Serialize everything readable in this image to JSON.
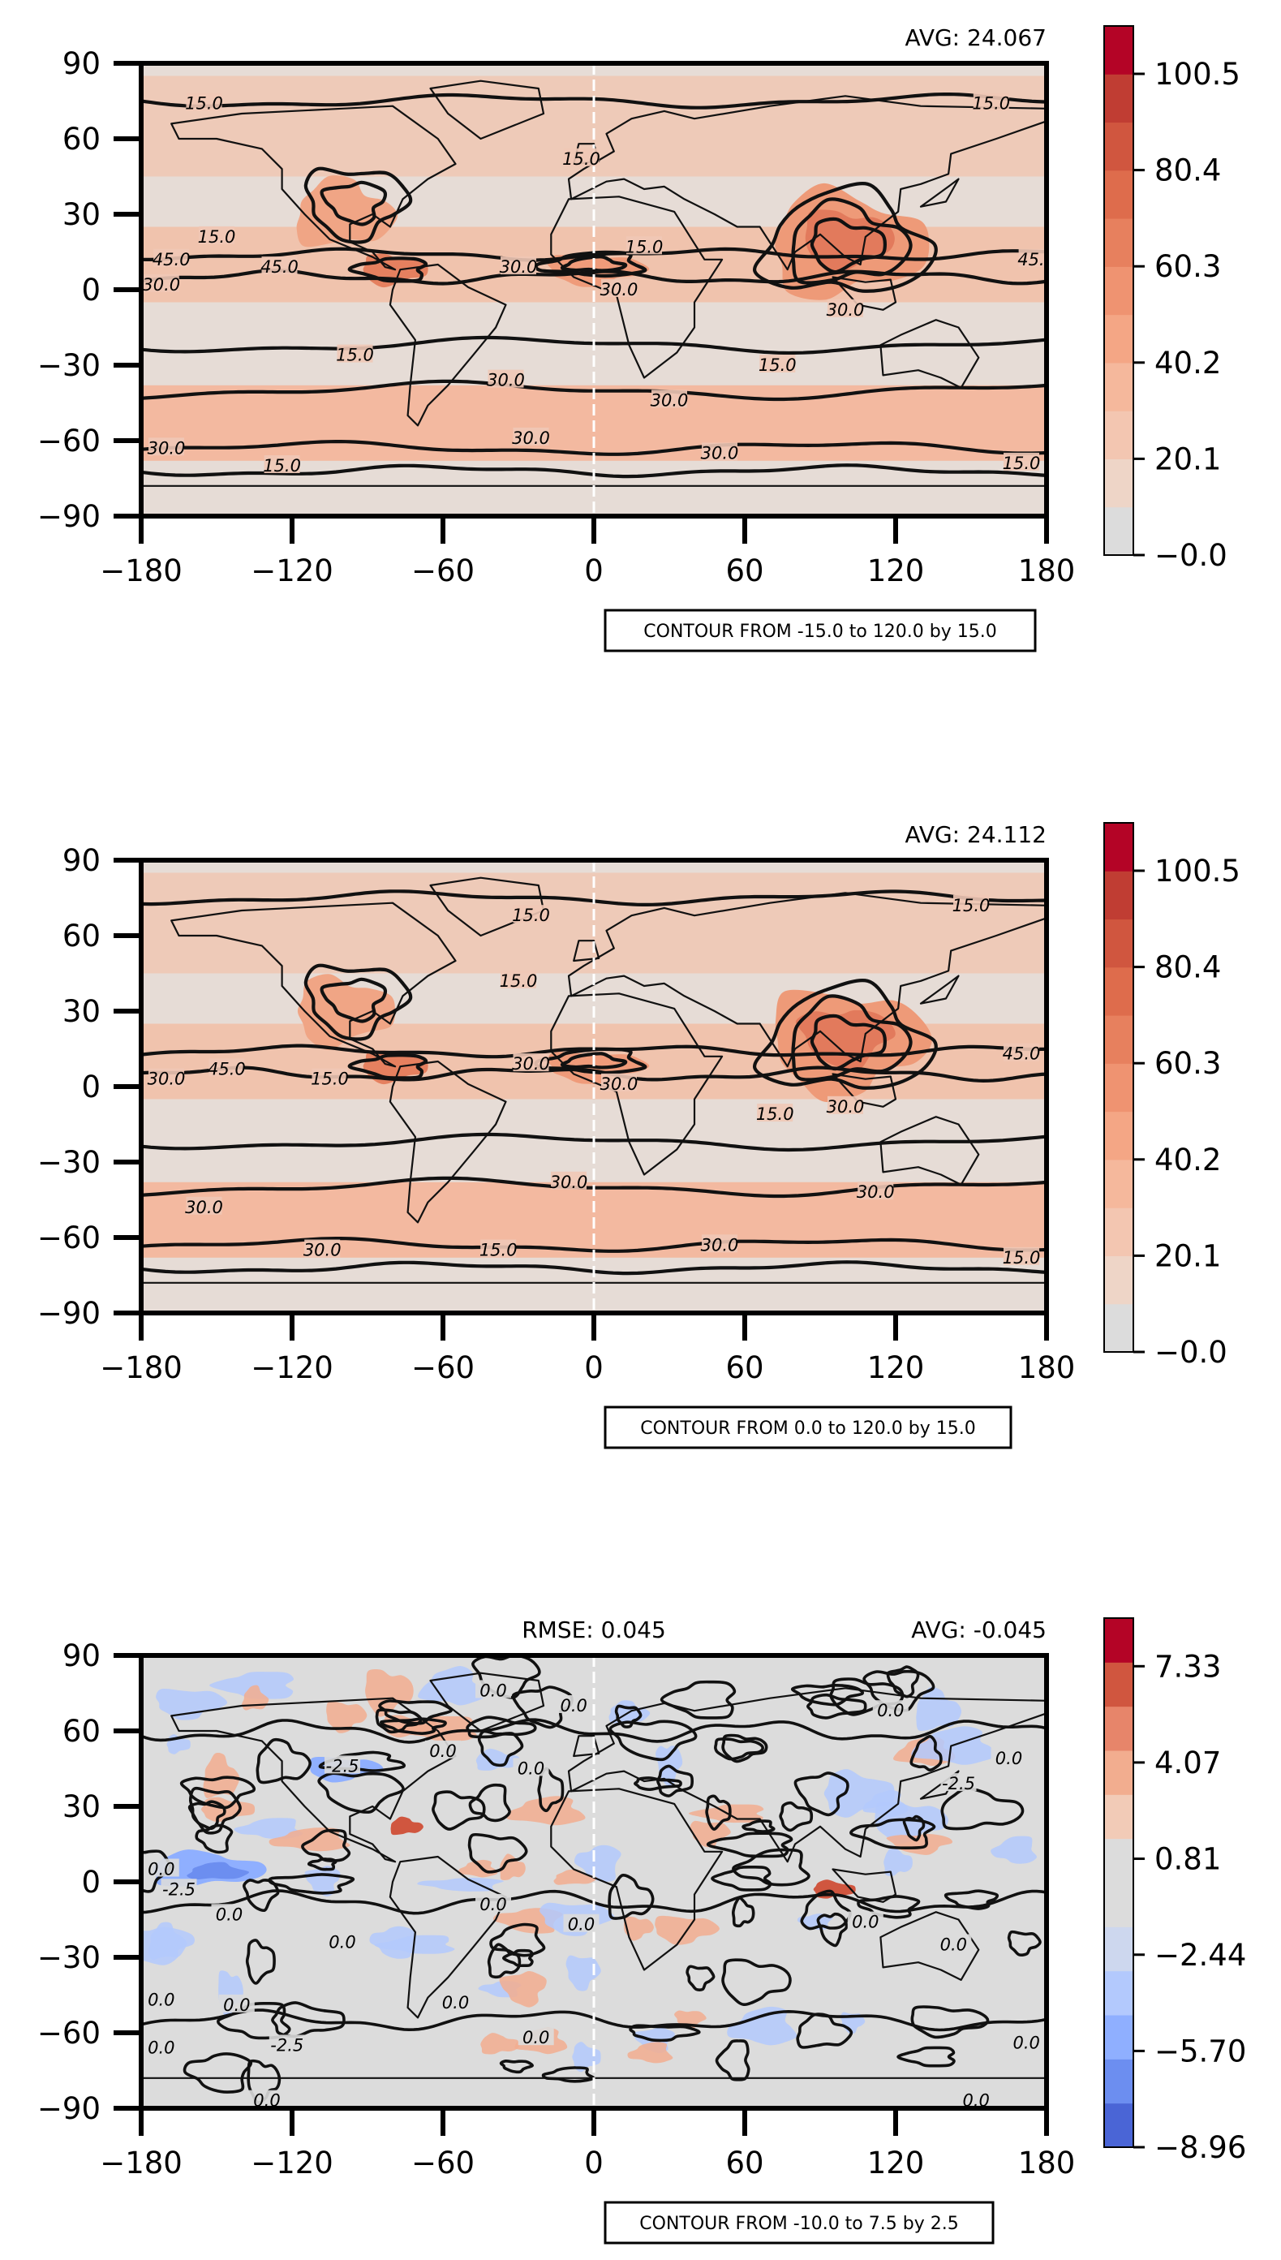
{
  "chart_data": [
    {
      "type": "heatmap",
      "title": "",
      "avg_label": "AVG: 24.067",
      "rmse_label": "",
      "contour_text": "CONTOUR FROM -15.0 to 120.0 by 15.0",
      "x_ticks": [
        -180,
        -120,
        -60,
        0,
        60,
        120,
        180
      ],
      "y_ticks": [
        -90,
        -60,
        -30,
        0,
        30,
        60,
        90
      ],
      "x_tick_labels": [
        "−180",
        "−120",
        "−60",
        "0",
        "60",
        "120",
        "180"
      ],
      "y_tick_labels": [
        "−90",
        "−60",
        "−30",
        "0",
        "30",
        "60",
        "90"
      ],
      "xlim": [
        -180,
        180
      ],
      "ylim": [
        -90,
        90
      ],
      "colorbar": {
        "ticks": [
          0.0,
          20.1,
          40.2,
          60.3,
          80.4,
          100.5
        ],
        "tick_labels": [
          "−0.0",
          "20.1",
          "40.2",
          "60.3",
          "80.4",
          "100.5"
        ],
        "range": [
          0,
          110.5
        ],
        "colors": [
          "#dcdcdc",
          "#eed5c7",
          "#f3c6b1",
          "#f5b89c",
          "#f4a685",
          "#ef9371",
          "#e7805e",
          "#de6c4c",
          "#d0563f",
          "#c03d33",
          "#b40426"
        ]
      },
      "contour_labels": [
        {
          "text": "15.0",
          "lon": -155,
          "lat": 74
        },
        {
          "text": "15.0",
          "lon": -5,
          "lat": 52
        },
        {
          "text": "15.0",
          "lon": 158,
          "lat": 74
        },
        {
          "text": "15.0",
          "lon": -150,
          "lat": 21
        },
        {
          "text": "45.0",
          "lon": -168,
          "lat": 12
        },
        {
          "text": "45.0",
          "lon": -125,
          "lat": 9
        },
        {
          "text": "30.0",
          "lon": -172,
          "lat": 2
        },
        {
          "text": "30.0",
          "lon": -30,
          "lat": 9
        },
        {
          "text": "15.0",
          "lon": 20,
          "lat": 17
        },
        {
          "text": "30.0",
          "lon": 10,
          "lat": 0
        },
        {
          "text": "45.0",
          "lon": 176,
          "lat": 12
        },
        {
          "text": "30.0",
          "lon": 100,
          "lat": -8
        },
        {
          "text": "15.0",
          "lon": -95,
          "lat": -26
        },
        {
          "text": "30.0",
          "lon": -35,
          "lat": -36
        },
        {
          "text": "30.0",
          "lon": 30,
          "lat": -44
        },
        {
          "text": "15.0",
          "lon": 73,
          "lat": -30
        },
        {
          "text": "30.0",
          "lon": -170,
          "lat": -63
        },
        {
          "text": "15.0",
          "lon": -124,
          "lat": -70
        },
        {
          "text": "30.0",
          "lon": -25,
          "lat": -59
        },
        {
          "text": "30.0",
          "lon": 50,
          "lat": -65
        },
        {
          "text": "15.0",
          "lon": 170,
          "lat": -69
        }
      ]
    },
    {
      "type": "heatmap",
      "title": "",
      "avg_label": "AVG: 24.112",
      "rmse_label": "",
      "contour_text": "CONTOUR FROM 0.0 to 120.0 by 15.0",
      "x_ticks": [
        -180,
        -120,
        -60,
        0,
        60,
        120,
        180
      ],
      "y_ticks": [
        -90,
        -60,
        -30,
        0,
        30,
        60,
        90
      ],
      "x_tick_labels": [
        "−180",
        "−120",
        "−60",
        "0",
        "60",
        "120",
        "180"
      ],
      "y_tick_labels": [
        "−90",
        "−60",
        "−30",
        "0",
        "30",
        "60",
        "90"
      ],
      "xlim": [
        -180,
        180
      ],
      "ylim": [
        -90,
        90
      ],
      "colorbar": {
        "ticks": [
          0.0,
          20.1,
          40.2,
          60.3,
          80.4,
          100.5
        ],
        "tick_labels": [
          "−0.0",
          "20.1",
          "40.2",
          "60.3",
          "80.4",
          "100.5"
        ],
        "range": [
          0,
          110.5
        ],
        "colors": [
          "#dcdcdc",
          "#eed5c7",
          "#f3c6b1",
          "#f5b89c",
          "#f4a685",
          "#ef9371",
          "#e7805e",
          "#de6c4c",
          "#d0563f",
          "#c03d33",
          "#b40426"
        ]
      },
      "contour_labels": [
        {
          "text": "15.0",
          "lon": -25,
          "lat": 68
        },
        {
          "text": "15.0",
          "lon": 150,
          "lat": 72
        },
        {
          "text": "15.0",
          "lon": -30,
          "lat": 42
        },
        {
          "text": "30.0",
          "lon": -170,
          "lat": 3
        },
        {
          "text": "45.0",
          "lon": -146,
          "lat": 7
        },
        {
          "text": "15.0",
          "lon": -105,
          "lat": 3
        },
        {
          "text": "30.0",
          "lon": -25,
          "lat": 9
        },
        {
          "text": "30.0",
          "lon": 10,
          "lat": 1
        },
        {
          "text": "45.0",
          "lon": 170,
          "lat": 13
        },
        {
          "text": "15.0",
          "lon": 72,
          "lat": -11
        },
        {
          "text": "30.0",
          "lon": 100,
          "lat": -8
        },
        {
          "text": "30.0",
          "lon": -155,
          "lat": -48
        },
        {
          "text": "30.0",
          "lon": -10,
          "lat": -38
        },
        {
          "text": "30.0",
          "lon": 112,
          "lat": -42
        },
        {
          "text": "30.0",
          "lon": -108,
          "lat": -65
        },
        {
          "text": "15.0",
          "lon": -38,
          "lat": -65
        },
        {
          "text": "30.0",
          "lon": 50,
          "lat": -63
        },
        {
          "text": "15.0",
          "lon": 170,
          "lat": -68
        }
      ]
    },
    {
      "type": "heatmap",
      "title": "",
      "avg_label": "AVG: -0.045",
      "rmse_label": "RMSE: 0.045",
      "contour_text": "CONTOUR FROM -10.0 to 7.5 by 2.5",
      "x_ticks": [
        -180,
        -120,
        -60,
        0,
        60,
        120,
        180
      ],
      "y_ticks": [
        -90,
        -60,
        -30,
        0,
        30,
        60,
        90
      ],
      "x_tick_labels": [
        "−180",
        "−120",
        "−60",
        "0",
        "60",
        "120",
        "180"
      ],
      "y_tick_labels": [
        "−90",
        "−60",
        "−30",
        "0",
        "30",
        "60",
        "90"
      ],
      "xlim": [
        -180,
        180
      ],
      "ylim": [
        -90,
        90
      ],
      "colorbar": {
        "ticks": [
          -8.96,
          -5.7,
          -2.44,
          0.81,
          4.07,
          7.33
        ],
        "tick_labels": [
          "−8.96",
          "−5.70",
          "−2.44",
          "0.81",
          "4.07",
          "7.33"
        ],
        "range": [
          -8.96,
          8.96
        ],
        "colors": [
          "#4a65d6",
          "#6c8ef0",
          "#8fafff",
          "#b3c9fd",
          "#cdd7ee",
          "#dcdcdc",
          "#dcdcdc",
          "#f2cbb7",
          "#f2ad8f",
          "#e7856a",
          "#d0563f",
          "#b40426"
        ]
      },
      "contour_labels": [
        {
          "text": "0.0",
          "lon": -40,
          "lat": 76
        },
        {
          "text": "0.0",
          "lon": -8,
          "lat": 70
        },
        {
          "text": "0.0",
          "lon": 118,
          "lat": 68
        },
        {
          "text": "-2.5",
          "lon": -100,
          "lat": 46
        },
        {
          "text": "0.0",
          "lon": -60,
          "lat": 52
        },
        {
          "text": "0.0",
          "lon": -25,
          "lat": 45
        },
        {
          "text": "0.0",
          "lon": 165,
          "lat": 49
        },
        {
          "text": "-2.5",
          "lon": 145,
          "lat": 39
        },
        {
          "text": "0.0",
          "lon": -172,
          "lat": 5
        },
        {
          "text": "-2.5",
          "lon": -165,
          "lat": -3
        },
        {
          "text": "0.0",
          "lon": -145,
          "lat": -13
        },
        {
          "text": "0.0",
          "lon": -40,
          "lat": -9
        },
        {
          "text": "0.0",
          "lon": -5,
          "lat": -17
        },
        {
          "text": "0.0",
          "lon": 108,
          "lat": -16
        },
        {
          "text": "0.0",
          "lon": 143,
          "lat": -25
        },
        {
          "text": "0.0",
          "lon": -100,
          "lat": -24
        },
        {
          "text": "0.0",
          "lon": -55,
          "lat": -48
        },
        {
          "text": "0.0",
          "lon": -172,
          "lat": -47
        },
        {
          "text": "0.0",
          "lon": -142,
          "lat": -49
        },
        {
          "text": "0.0",
          "lon": -172,
          "lat": -66
        },
        {
          "text": "-2.5",
          "lon": -122,
          "lat": -65
        },
        {
          "text": "0.0",
          "lon": -23,
          "lat": -62
        },
        {
          "text": "0.0",
          "lon": 172,
          "lat": -64
        },
        {
          "text": "0.0",
          "lon": -130,
          "lat": -87
        },
        {
          "text": "0.0",
          "lon": 152,
          "lat": -87
        }
      ]
    }
  ]
}
